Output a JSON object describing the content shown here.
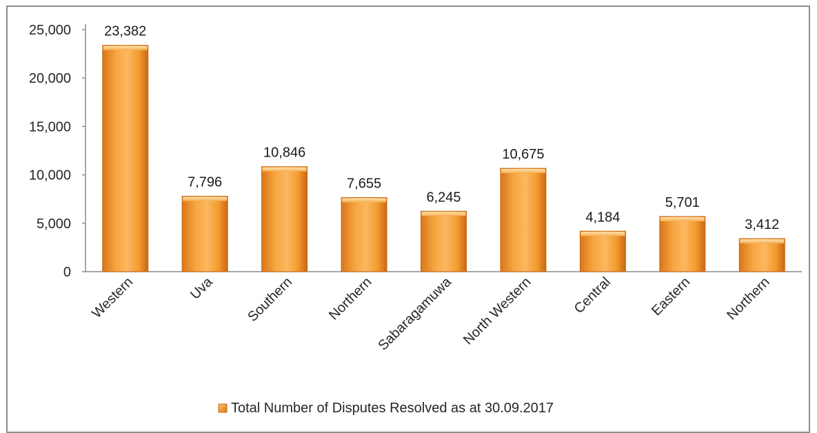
{
  "chart_data": {
    "type": "bar",
    "categories": [
      "Western",
      "Uva",
      "Southern",
      "Northern",
      "Sabaragamuwa",
      "North Western",
      "Central",
      "Eastern",
      "Northern"
    ],
    "series": [
      {
        "name": "Total Number of Disputes Resolved as at 30.09.2017",
        "values": [
          23382,
          7796,
          10846,
          7655,
          6245,
          10675,
          4184,
          5701,
          3412
        ],
        "labels": [
          "23,382",
          "7,796",
          "10,846",
          "7,655",
          "6,245",
          "10,675",
          "4,184",
          "5,701",
          "3,412"
        ]
      }
    ],
    "ylim": [
      0,
      25000
    ],
    "yticks": [
      0,
      5000,
      10000,
      15000,
      20000,
      25000
    ],
    "ytick_labels": [
      "0",
      "5,000",
      "10,000",
      "15,000",
      "20,000",
      "25,000"
    ],
    "title": "",
    "xlabel": "",
    "ylabel": "",
    "grid": false,
    "legend_position": "bottom",
    "bar_color": "#f39a2e",
    "bar_highlight": "#fcd08a",
    "bar_shadow": "#d9761a"
  }
}
